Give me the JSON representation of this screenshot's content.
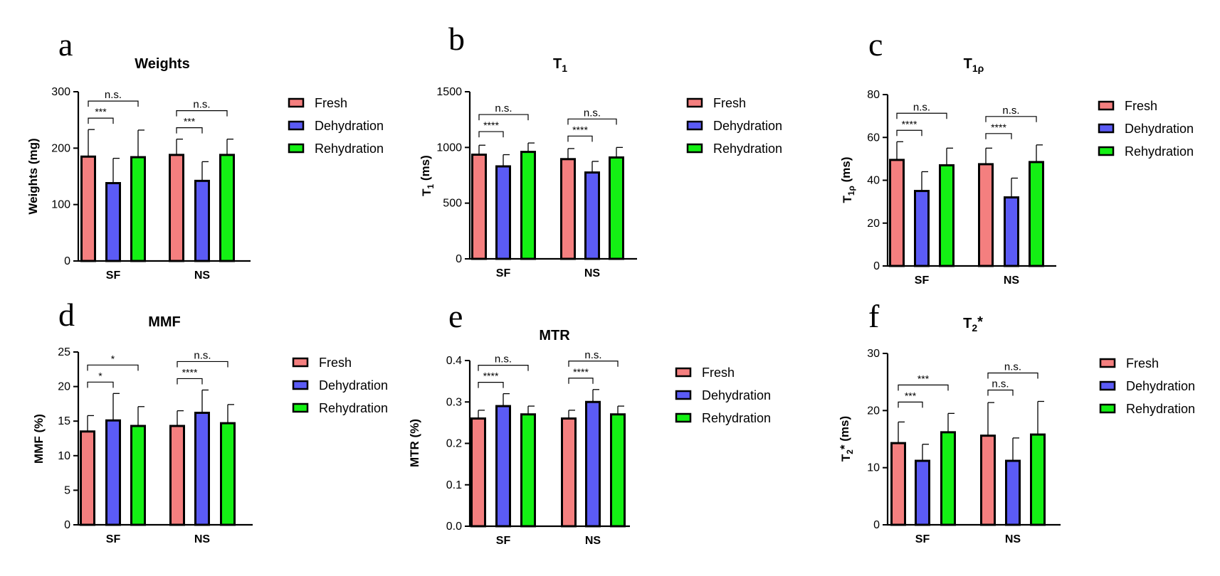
{
  "figure_title": "",
  "legend_labels": [
    "Fresh",
    "Dehydration",
    "Rehydration"
  ],
  "colors": {
    "Fresh": "#f47f7f",
    "Dehydration": "#5b5bf5",
    "Rehydration": "#14f014",
    "axis": "#000000"
  },
  "chart_data": [
    {
      "panel": "a",
      "type": "bar",
      "title": "Weights",
      "ylabel": "Weights (mg)",
      "ylim": [
        0,
        300
      ],
      "yticks": [
        0,
        100,
        200,
        300
      ],
      "categories": [
        "SF",
        "NS"
      ],
      "series": [
        {
          "name": "Fresh",
          "values": [
            185,
            188
          ],
          "errors": [
            48,
            28
          ]
        },
        {
          "name": "Dehydration",
          "values": [
            138,
            142
          ],
          "errors": [
            44,
            34
          ]
        },
        {
          "name": "Rehydration",
          "values": [
            184,
            188
          ],
          "errors": [
            48,
            28
          ]
        }
      ],
      "significance": [
        {
          "category": "SF",
          "pair": [
            "Fresh",
            "Dehydration"
          ],
          "label": "***"
        },
        {
          "category": "SF",
          "pair": [
            "Fresh",
            "Rehydration"
          ],
          "label": "n.s."
        },
        {
          "category": "NS",
          "pair": [
            "Fresh",
            "Dehydration"
          ],
          "label": "***"
        },
        {
          "category": "NS",
          "pair": [
            "Fresh",
            "Rehydration"
          ],
          "label": "n.s."
        }
      ]
    },
    {
      "panel": "b",
      "type": "bar",
      "title": "T1",
      "title_main": "T",
      "title_sub": "1",
      "ylabel": "T1 (ms)",
      "ylabel_main": "T",
      "ylabel_sub": "1",
      "ylabel_rest": " (ms)",
      "ylim": [
        0,
        1500
      ],
      "yticks": [
        0,
        500,
        1000,
        1500
      ],
      "categories": [
        "SF",
        "NS"
      ],
      "series": [
        {
          "name": "Fresh",
          "values": [
            935,
            895
          ],
          "errors": [
            85,
            95
          ]
        },
        {
          "name": "Dehydration",
          "values": [
            830,
            775
          ],
          "errors": [
            105,
            100
          ]
        },
        {
          "name": "Rehydration",
          "values": [
            960,
            910
          ],
          "errors": [
            80,
            90
          ]
        }
      ],
      "significance": [
        {
          "category": "SF",
          "pair": [
            "Fresh",
            "Dehydration"
          ],
          "label": "****"
        },
        {
          "category": "SF",
          "pair": [
            "Fresh",
            "Rehydration"
          ],
          "label": "n.s."
        },
        {
          "category": "NS",
          "pair": [
            "Fresh",
            "Dehydration"
          ],
          "label": "****"
        },
        {
          "category": "NS",
          "pair": [
            "Fresh",
            "Rehydration"
          ],
          "label": "n.s."
        }
      ]
    },
    {
      "panel": "c",
      "type": "bar",
      "title": "T1ρ",
      "title_main": "T",
      "title_sub": "1ρ",
      "ylabel": "T1ρ (ms)",
      "ylabel_main": "T",
      "ylabel_sub": "1ρ",
      "ylabel_rest": " (ms)",
      "ylim": [
        0,
        80
      ],
      "yticks": [
        0,
        20,
        40,
        60,
        80
      ],
      "categories": [
        "SF",
        "NS"
      ],
      "series": [
        {
          "name": "Fresh",
          "values": [
            49.5,
            47.5
          ],
          "errors": [
            8.5,
            7.5
          ]
        },
        {
          "name": "Dehydration",
          "values": [
            35,
            32
          ],
          "errors": [
            9,
            9
          ]
        },
        {
          "name": "Rehydration",
          "values": [
            47,
            48.5
          ],
          "errors": [
            8,
            8
          ]
        }
      ],
      "significance": [
        {
          "category": "SF",
          "pair": [
            "Fresh",
            "Dehydration"
          ],
          "label": "****"
        },
        {
          "category": "SF",
          "pair": [
            "Fresh",
            "Rehydration"
          ],
          "label": "n.s."
        },
        {
          "category": "NS",
          "pair": [
            "Fresh",
            "Dehydration"
          ],
          "label": "****"
        },
        {
          "category": "NS",
          "pair": [
            "Fresh",
            "Rehydration"
          ],
          "label": "n.s."
        }
      ]
    },
    {
      "panel": "d",
      "type": "bar",
      "title": "MMF",
      "ylabel": "MMF (%)",
      "ylim": [
        0,
        25
      ],
      "yticks": [
        0,
        5,
        10,
        15,
        20,
        25
      ],
      "categories": [
        "SF",
        "NS"
      ],
      "series": [
        {
          "name": "Fresh",
          "values": [
            13.5,
            14.3
          ],
          "errors": [
            2.3,
            2.2
          ]
        },
        {
          "name": "Dehydration",
          "values": [
            15.1,
            16.2
          ],
          "errors": [
            3.9,
            3.3
          ]
        },
        {
          "name": "Rehydration",
          "values": [
            14.3,
            14.7
          ],
          "errors": [
            2.8,
            2.7
          ]
        }
      ],
      "significance": [
        {
          "category": "SF",
          "pair": [
            "Fresh",
            "Dehydration"
          ],
          "label": "*"
        },
        {
          "category": "SF",
          "pair": [
            "Fresh",
            "Rehydration"
          ],
          "label": "*"
        },
        {
          "category": "NS",
          "pair": [
            "Fresh",
            "Dehydration"
          ],
          "label": "****"
        },
        {
          "category": "NS",
          "pair": [
            "Fresh",
            "Rehydration"
          ],
          "label": "n.s."
        }
      ]
    },
    {
      "panel": "e",
      "type": "bar",
      "title": "MTR",
      "ylabel": "MTR (%)",
      "ylim": [
        0,
        0.4
      ],
      "yticks": [
        0.0,
        0.1,
        0.2,
        0.3,
        0.4
      ],
      "ytick_labels": [
        "0.0",
        "0.1",
        "0.2",
        "0.3",
        "0.4"
      ],
      "categories": [
        "SF",
        "NS"
      ],
      "series": [
        {
          "name": "Fresh",
          "values": [
            0.26,
            0.26
          ],
          "errors": [
            0.02,
            0.02
          ]
        },
        {
          "name": "Dehydration",
          "values": [
            0.29,
            0.3
          ],
          "errors": [
            0.03,
            0.03
          ]
        },
        {
          "name": "Rehydration",
          "values": [
            0.27,
            0.27
          ],
          "errors": [
            0.02,
            0.02
          ]
        }
      ],
      "significance": [
        {
          "category": "SF",
          "pair": [
            "Fresh",
            "Dehydration"
          ],
          "label": "****"
        },
        {
          "category": "SF",
          "pair": [
            "Fresh",
            "Rehydration"
          ],
          "label": "n.s."
        },
        {
          "category": "NS",
          "pair": [
            "Fresh",
            "Dehydration"
          ],
          "label": "****"
        },
        {
          "category": "NS",
          "pair": [
            "Fresh",
            "Rehydration"
          ],
          "label": "n.s."
        }
      ]
    },
    {
      "panel": "f",
      "type": "bar",
      "title": "T2*",
      "title_main": "T",
      "title_sub": "2",
      "title_rest": "*",
      "ylabel": "T2* (ms)",
      "ylabel_main": "T",
      "ylabel_sub": "2",
      "ylabel_rest": "* (ms)",
      "ylim": [
        0,
        30
      ],
      "yticks": [
        0,
        10,
        20,
        30
      ],
      "categories": [
        "SF",
        "NS"
      ],
      "series": [
        {
          "name": "Fresh",
          "values": [
            14.3,
            15.6
          ],
          "errors": [
            3.7,
            5.8
          ]
        },
        {
          "name": "Dehydration",
          "values": [
            11.2,
            11.2
          ],
          "errors": [
            2.9,
            4.0
          ]
        },
        {
          "name": "Rehydration",
          "values": [
            16.2,
            15.8
          ],
          "errors": [
            3.3,
            5.8
          ]
        }
      ],
      "significance": [
        {
          "category": "SF",
          "pair": [
            "Fresh",
            "Dehydration"
          ],
          "label": "***"
        },
        {
          "category": "SF",
          "pair": [
            "Fresh",
            "Rehydration"
          ],
          "label": "***"
        },
        {
          "category": "NS",
          "pair": [
            "Fresh",
            "Dehydration"
          ],
          "label": "n.s."
        },
        {
          "category": "NS",
          "pair": [
            "Fresh",
            "Rehydration"
          ],
          "label": "n.s."
        }
      ]
    }
  ]
}
